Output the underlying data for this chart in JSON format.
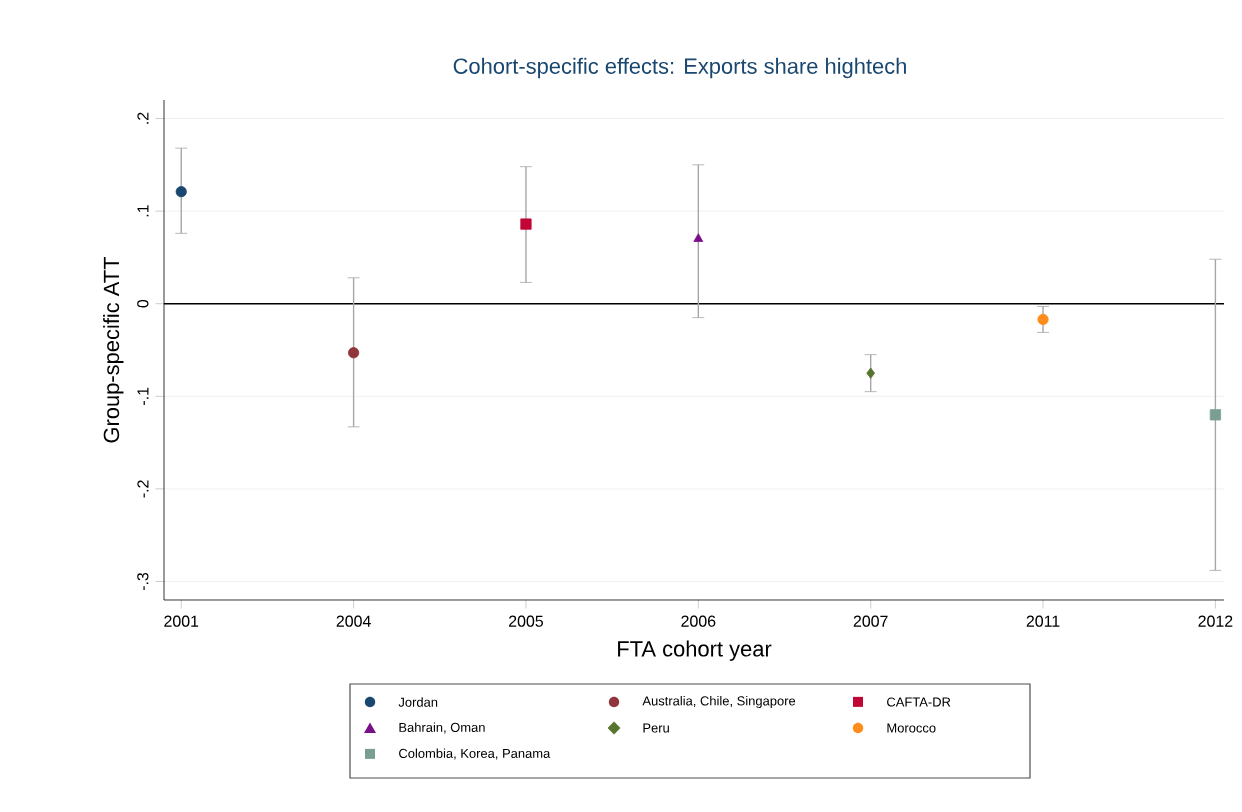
{
  "chart_data": {
    "type": "scatter",
    "title": "Cohort-specific effects: Exports share hightech",
    "xlabel": "FTA cohort year",
    "ylabel": "Group-specific ATT",
    "categories": [
      "2001",
      "2004",
      "2005",
      "2006",
      "2007",
      "2011",
      "2012"
    ],
    "ylim": [
      -0.32,
      0.22
    ],
    "yticks": [
      {
        "value": -0.3,
        "label": "-.3"
      },
      {
        "value": -0.2,
        "label": "-.2"
      },
      {
        "value": -0.1,
        "label": "-.1"
      },
      {
        "value": 0,
        "label": "0"
      },
      {
        "value": 0.1,
        "label": ".1"
      },
      {
        "value": 0.2,
        "label": ".2"
      }
    ],
    "grid": "y",
    "legend": "bottom",
    "ref_lines": [
      {
        "axis": "y",
        "value": 0,
        "color": "#000000"
      }
    ],
    "series": [
      {
        "name": "Jordan",
        "color": "#1a476f",
        "marker": "circle",
        "values": [
          0.121,
          null,
          null,
          null,
          null,
          null,
          null
        ],
        "errors": [
          [
            0.076,
            0.168
          ],
          null,
          null,
          null,
          null,
          null,
          null
        ]
      },
      {
        "name": "Australia, Chile, Singapore",
        "color": "#90353b",
        "marker": "circle",
        "values": [
          null,
          -0.053,
          null,
          null,
          null,
          null,
          null
        ],
        "errors": [
          null,
          [
            -0.133,
            0.028
          ],
          null,
          null,
          null,
          null,
          null
        ]
      },
      {
        "name": "CAFTA-DR",
        "color": "#c10534",
        "marker": "square",
        "values": [
          null,
          null,
          0.086,
          null,
          null,
          null,
          null
        ],
        "errors": [
          null,
          null,
          [
            0.023,
            0.148
          ],
          null,
          null,
          null,
          null
        ]
      },
      {
        "name": "Bahrain, Oman",
        "color": "#7b0f8a",
        "marker": "triangle",
        "values": [
          null,
          null,
          null,
          0.07,
          null,
          null,
          null
        ],
        "errors": [
          null,
          null,
          null,
          [
            -0.015,
            0.15
          ],
          null,
          null,
          null
        ]
      },
      {
        "name": "Peru",
        "color": "#55752f",
        "marker": "diamond",
        "values": [
          null,
          null,
          null,
          null,
          -0.075,
          null,
          null
        ],
        "errors": [
          null,
          null,
          null,
          null,
          [
            -0.095,
            -0.055
          ],
          null,
          null
        ]
      },
      {
        "name": "Morocco",
        "color": "#ff8c1a",
        "marker": "circle",
        "values": [
          null,
          null,
          null,
          null,
          null,
          -0.017,
          null
        ],
        "errors": [
          null,
          null,
          null,
          null,
          null,
          [
            -0.031,
            -0.003
          ],
          null
        ]
      },
      {
        "name": "Colombia, Korea, Panama",
        "color": "#7a9e90",
        "marker": "square",
        "values": [
          null,
          null,
          null,
          null,
          null,
          null,
          -0.12
        ],
        "errors": [
          null,
          null,
          null,
          null,
          null,
          null,
          [
            -0.288,
            0.048
          ]
        ]
      }
    ]
  }
}
